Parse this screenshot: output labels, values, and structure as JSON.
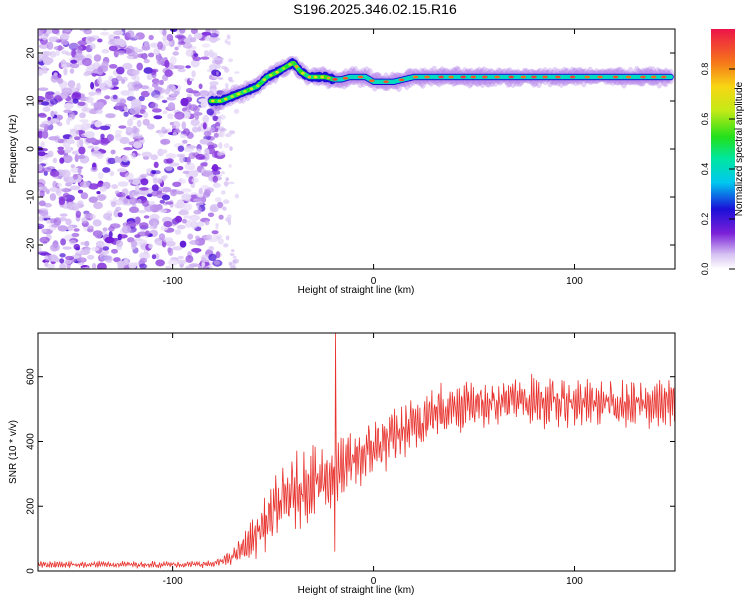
{
  "title": "S196.2025.346.02.15.R16",
  "chart_data": [
    {
      "type": "heatmap",
      "name": "spectrogram",
      "xlabel": "Height of straight line (km)",
      "ylabel": "Frequency (Hz)",
      "xlim": [
        -167,
        150
      ],
      "ylim": [
        -25,
        25
      ],
      "xticks": [
        -100,
        0,
        100
      ],
      "yticks": [
        -20,
        -10,
        0,
        10,
        20
      ],
      "noise_region_x": [
        -167,
        -76
      ],
      "signal_track": {
        "x": [
          -81,
          -76,
          -70,
          -64,
          -58,
          -53,
          -48,
          -44,
          -40,
          -36,
          -32,
          -28,
          -24,
          -20,
          -16,
          -12,
          -8,
          -4,
          0,
          10,
          20,
          40,
          60,
          80,
          100,
          120,
          148
        ],
        "freq_hz": [
          10,
          10,
          11,
          12,
          13,
          15,
          16,
          17,
          18,
          16,
          15,
          15,
          15,
          14.5,
          14.5,
          15,
          15,
          15,
          14,
          14,
          15,
          15,
          15,
          15,
          15,
          15,
          15
        ]
      },
      "colorbar": {
        "label": "Normalized spectral amplitude",
        "range": [
          0,
          0.96
        ],
        "ticks": [
          0.0,
          0.2,
          0.4,
          0.6,
          0.8
        ],
        "tick_labels": [
          "0.0",
          "0.2",
          "0.4",
          "0.6",
          "0.8"
        ]
      }
    },
    {
      "type": "line",
      "name": "snr",
      "xlabel": "Height of straight line (km)",
      "ylabel": "SNR (10 * v/v)",
      "xlim": [
        -167,
        150
      ],
      "ylim": [
        0,
        735
      ],
      "xticks": [
        -100,
        0,
        100
      ],
      "yticks": [
        0,
        200,
        400,
        600
      ],
      "color": "#e8322d",
      "series": [
        {
          "name": "SNR",
          "x": [
            -167,
            -150,
            -130,
            -110,
            -90,
            -80,
            -75,
            -70,
            -65,
            -60,
            -55,
            -50,
            -45,
            -40,
            -35,
            -30,
            -25,
            -20,
            -15,
            -10,
            -5,
            0,
            5,
            10,
            15,
            20,
            25,
            30,
            35,
            40,
            50,
            60,
            70,
            80,
            90,
            100,
            110,
            120,
            130,
            140,
            150
          ],
          "mean": [
            20,
            20,
            20,
            20,
            20,
            22,
            30,
            45,
            70,
            100,
            140,
            180,
            215,
            240,
            260,
            270,
            280,
            300,
            310,
            340,
            360,
            380,
            395,
            415,
            430,
            450,
            470,
            490,
            500,
            510,
            520,
            525,
            525,
            525,
            520,
            520,
            520,
            515,
            515,
            515,
            520
          ],
          "amplitude": [
            10,
            10,
            10,
            10,
            10,
            10,
            15,
            25,
            40,
            60,
            80,
            100,
            110,
            110,
            110,
            110,
            110,
            110,
            100,
            100,
            90,
            90,
            90,
            80,
            80,
            80,
            80,
            80,
            80,
            80,
            80,
            75,
            75,
            75,
            75,
            70,
            70,
            70,
            70,
            70,
            70
          ]
        }
      ],
      "spike": {
        "x": -19,
        "value": 735
      }
    }
  ]
}
